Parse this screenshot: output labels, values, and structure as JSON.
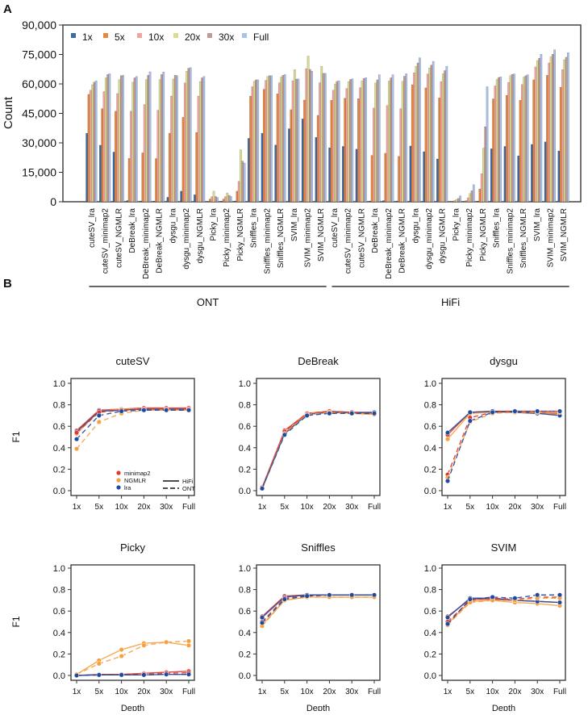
{
  "panel_labels": [
    "A",
    "B"
  ],
  "colors": {
    "depth": {
      "1x": "#3b6aa8",
      "5x": "#e9873b",
      "10x": "#f5a3a0",
      "20x": "#dadc8e",
      "30x": "#c49a93",
      "Full": "#a9c2ea"
    },
    "aligner": {
      "minimap2": "#e2372d",
      "NGMLR": "#f6a040",
      "lra": "#1f4a9c"
    }
  },
  "chart_data": [
    {
      "type": "bar",
      "panel": "A",
      "ylabel": "Count",
      "ylim": [
        0,
        90000
      ],
      "yticks": [
        "0",
        "15,000",
        "30,000",
        "45,000",
        "60,000",
        "75,000",
        "90,000"
      ],
      "legend": [
        "1x",
        "5x",
        "10x",
        "20x",
        "30x",
        "Full"
      ],
      "legend_position": "top-left",
      "groups": [
        {
          "name": "ONT",
          "from": 0,
          "to": 17
        },
        {
          "name": "HiFi",
          "from": 18,
          "to": 35
        }
      ],
      "categories": [
        "cuteSV_lra",
        "cuteSV_minimap2",
        "cuteSV_NGMLR",
        "DeBreak_lra",
        "DeBreak_minimap2",
        "DeBreak_NGMLR",
        "dysgu_lra",
        "dysgu_minimap2",
        "dysgu_NGMLR",
        "Picky_lra",
        "Picky_minimap2",
        "Picky_NGMLR",
        "Sniffles_lra",
        "Sniffles_minimap2",
        "Sniffles_NGMLR",
        "SVIM_lra",
        "SVIM_minimap2",
        "SVIM_NGMLR",
        "cuteSV_lra",
        "cuteSV_minimap2",
        "cuteSV_NGMLR",
        "DeBreak_lra",
        "DeBreak_minimap2",
        "DeBreak_NGMLR",
        "dysgu_lra",
        "dysgu_minimap2",
        "dysgu_NGMLR",
        "Picky_lra",
        "Picky_minimap2",
        "Picky_NGMLR",
        "Sniffles_lra",
        "Sniffles_minimap2",
        "Sniffles_NGMLR",
        "SVIM_lra",
        "SVIM_minimap2",
        "SVIM_NGMLR"
      ],
      "series": [
        {
          "name": "1x",
          "values": [
            34900,
            28800,
            25300,
            600,
            400,
            300,
            2300,
            5400,
            3600,
            150,
            300,
            400,
            32300,
            34900,
            28900,
            37200,
            42200,
            32800,
            27500,
            28200,
            26800,
            400,
            600,
            400,
            28400,
            25500,
            21800,
            0,
            150,
            300,
            27000,
            28200,
            23400,
            29200,
            30500,
            25900
          ]
        },
        {
          "name": "5x",
          "values": [
            54700,
            47400,
            46100,
            22100,
            24900,
            22000,
            34900,
            43000,
            35300,
            1400,
            1400,
            5400,
            53800,
            57300,
            55000,
            46900,
            51800,
            44000,
            51700,
            52700,
            52500,
            23600,
            24700,
            23100,
            59600,
            58000,
            52900,
            300,
            600,
            6500,
            52400,
            54200,
            51700,
            62100,
            64400,
            58300
          ]
        },
        {
          "name": "10x",
          "values": [
            56800,
            56100,
            55100,
            46100,
            49500,
            46600,
            53800,
            60500,
            53800,
            2600,
            2600,
            10400,
            58600,
            61800,
            60600,
            61600,
            67800,
            60600,
            56800,
            57700,
            58100,
            47700,
            49000,
            47400,
            65700,
            65100,
            61200,
            600,
            2000,
            14300,
            59000,
            60800,
            59700,
            68700,
            70700,
            67300
          ]
        },
        {
          "name": "20x",
          "values": [
            59600,
            63100,
            62200,
            60900,
            62200,
            62200,
            62500,
            66500,
            61200,
            5400,
            4500,
            26500,
            61300,
            63800,
            63500,
            67300,
            74200,
            69000,
            60000,
            61200,
            61600,
            60500,
            61500,
            61300,
            69000,
            68100,
            65200,
            1200,
            4200,
            27300,
            62300,
            64200,
            63500,
            71900,
            73800,
            72300
          ]
        },
        {
          "name": "30x",
          "values": [
            60900,
            64800,
            64200,
            63100,
            64400,
            64800,
            64400,
            68000,
            63100,
            2700,
            3300,
            20700,
            62100,
            64200,
            64400,
            62500,
            67400,
            65400,
            61300,
            62300,
            62800,
            62100,
            63100,
            63900,
            70700,
            69600,
            66800,
            1700,
            5600,
            38200,
            63300,
            64900,
            64200,
            73100,
            75100,
            73600
          ]
        },
        {
          "name": "Full",
          "values": [
            61600,
            65200,
            64400,
            63800,
            66200,
            66100,
            64200,
            68300,
            63800,
            2200,
            2700,
            19700,
            62100,
            64200,
            64800,
            62500,
            66500,
            65400,
            61600,
            62600,
            63200,
            64700,
            64700,
            65200,
            73300,
            71500,
            69000,
            3000,
            8700,
            58600,
            63600,
            65100,
            64700,
            75100,
            77400,
            75900
          ]
        }
      ]
    },
    {
      "type": "line",
      "panel": "B",
      "title": "cuteSV",
      "ylabel": "F1",
      "xlabel": "",
      "ylim": [
        0,
        1
      ],
      "categories": [
        "1x",
        "5x",
        "10x",
        "20x",
        "30x",
        "Full"
      ],
      "series": [
        {
          "aligner": "minimap2",
          "platform": "HiFi",
          "values": [
            0.56,
            0.75,
            0.76,
            0.77,
            0.77,
            0.77
          ]
        },
        {
          "aligner": "NGMLR",
          "platform": "HiFi",
          "values": [
            0.53,
            0.74,
            0.76,
            0.76,
            0.76,
            0.76
          ]
        },
        {
          "aligner": "lra",
          "platform": "HiFi",
          "values": [
            0.55,
            0.74,
            0.75,
            0.76,
            0.76,
            0.76
          ]
        },
        {
          "aligner": "minimap2",
          "platform": "ONT",
          "values": [
            0.54,
            0.73,
            0.75,
            0.76,
            0.76,
            0.76
          ]
        },
        {
          "aligner": "NGMLR",
          "platform": "ONT",
          "values": [
            0.39,
            0.64,
            0.72,
            0.75,
            0.75,
            0.75
          ]
        },
        {
          "aligner": "lra",
          "platform": "ONT",
          "values": [
            0.48,
            0.7,
            0.74,
            0.75,
            0.75,
            0.75
          ]
        }
      ]
    },
    {
      "type": "line",
      "panel": "B",
      "title": "DeBreak",
      "ylabel": "",
      "xlabel": "",
      "ylim": [
        0,
        1
      ],
      "categories": [
        "1x",
        "5x",
        "10x",
        "20x",
        "30x",
        "Full"
      ],
      "series": [
        {
          "aligner": "minimap2",
          "platform": "HiFi",
          "values": [
            0.03,
            0.56,
            0.72,
            0.74,
            0.73,
            0.72
          ]
        },
        {
          "aligner": "NGMLR",
          "platform": "HiFi",
          "values": [
            0.02,
            0.54,
            0.72,
            0.73,
            0.72,
            0.71
          ]
        },
        {
          "aligner": "lra",
          "platform": "HiFi",
          "values": [
            0.02,
            0.53,
            0.71,
            0.73,
            0.73,
            0.73
          ]
        },
        {
          "aligner": "minimap2",
          "platform": "ONT",
          "values": [
            0.03,
            0.55,
            0.72,
            0.74,
            0.73,
            0.72
          ]
        },
        {
          "aligner": "NGMLR",
          "platform": "ONT",
          "values": [
            0.02,
            0.53,
            0.71,
            0.73,
            0.72,
            0.71
          ]
        },
        {
          "aligner": "lra",
          "platform": "ONT",
          "values": [
            0.02,
            0.52,
            0.7,
            0.72,
            0.72,
            0.72
          ]
        }
      ]
    },
    {
      "type": "line",
      "panel": "B",
      "title": "dysgu",
      "ylabel": "",
      "xlabel": "",
      "ylim": [
        0,
        1
      ],
      "categories": [
        "1x",
        "5x",
        "10x",
        "20x",
        "30x",
        "Full"
      ],
      "series": [
        {
          "aligner": "minimap2",
          "platform": "HiFi",
          "values": [
            0.52,
            0.73,
            0.74,
            0.74,
            0.73,
            0.72
          ]
        },
        {
          "aligner": "NGMLR",
          "platform": "HiFi",
          "values": [
            0.48,
            0.72,
            0.73,
            0.73,
            0.72,
            0.71
          ]
        },
        {
          "aligner": "lra",
          "platform": "HiFi",
          "values": [
            0.54,
            0.73,
            0.74,
            0.73,
            0.72,
            0.7
          ]
        },
        {
          "aligner": "minimap2",
          "platform": "ONT",
          "values": [
            0.15,
            0.68,
            0.73,
            0.74,
            0.74,
            0.74
          ]
        },
        {
          "aligner": "NGMLR",
          "platform": "ONT",
          "values": [
            0.12,
            0.64,
            0.72,
            0.73,
            0.73,
            0.73
          ]
        },
        {
          "aligner": "lra",
          "platform": "ONT",
          "values": [
            0.09,
            0.65,
            0.73,
            0.74,
            0.74,
            0.74
          ]
        }
      ]
    },
    {
      "type": "line",
      "panel": "B",
      "title": "Picky",
      "ylabel": "F1",
      "xlabel": "Depth",
      "ylim": [
        0,
        1
      ],
      "categories": [
        "1x",
        "5x",
        "10x",
        "20x",
        "30x",
        "Full"
      ],
      "series": [
        {
          "aligner": "minimap2",
          "platform": "HiFi",
          "values": [
            0.0,
            0.01,
            0.01,
            0.02,
            0.03,
            0.04
          ]
        },
        {
          "aligner": "NGMLR",
          "platform": "HiFi",
          "values": [
            0.01,
            0.14,
            0.24,
            0.3,
            0.31,
            0.28
          ]
        },
        {
          "aligner": "lra",
          "platform": "HiFi",
          "values": [
            0.0,
            0.005,
            0.005,
            0.005,
            0.01,
            0.01
          ]
        },
        {
          "aligner": "minimap2",
          "platform": "ONT",
          "values": [
            0.0,
            0.005,
            0.01,
            0.015,
            0.02,
            0.025
          ]
        },
        {
          "aligner": "NGMLR",
          "platform": "ONT",
          "values": [
            0.01,
            0.11,
            0.18,
            0.28,
            0.31,
            0.32
          ]
        },
        {
          "aligner": "lra",
          "platform": "ONT",
          "values": [
            0.0,
            0.005,
            0.005,
            0.005,
            0.01,
            0.01
          ]
        }
      ]
    },
    {
      "type": "line",
      "panel": "B",
      "title": "Sniffles",
      "ylabel": "",
      "xlabel": "Depth",
      "ylim": [
        0,
        1
      ],
      "categories": [
        "1x",
        "5x",
        "10x",
        "20x",
        "30x",
        "Full"
      ],
      "series": [
        {
          "aligner": "minimap2",
          "platform": "HiFi",
          "values": [
            0.55,
            0.74,
            0.75,
            0.75,
            0.75,
            0.75
          ]
        },
        {
          "aligner": "NGMLR",
          "platform": "HiFi",
          "values": [
            0.47,
            0.7,
            0.73,
            0.73,
            0.73,
            0.73
          ]
        },
        {
          "aligner": "lra",
          "platform": "HiFi",
          "values": [
            0.54,
            0.73,
            0.75,
            0.75,
            0.75,
            0.75
          ]
        },
        {
          "aligner": "minimap2",
          "platform": "ONT",
          "values": [
            0.5,
            0.72,
            0.74,
            0.75,
            0.75,
            0.75
          ]
        },
        {
          "aligner": "NGMLR",
          "platform": "ONT",
          "values": [
            0.46,
            0.7,
            0.73,
            0.73,
            0.73,
            0.73
          ]
        },
        {
          "aligner": "lra",
          "platform": "ONT",
          "values": [
            0.49,
            0.71,
            0.74,
            0.75,
            0.75,
            0.75
          ]
        }
      ]
    },
    {
      "type": "line",
      "panel": "B",
      "title": "SVIM",
      "ylabel": "",
      "xlabel": "Depth",
      "ylim": [
        0,
        1
      ],
      "categories": [
        "1x",
        "5x",
        "10x",
        "20x",
        "30x",
        "Full"
      ],
      "series": [
        {
          "aligner": "minimap2",
          "platform": "HiFi",
          "values": [
            0.55,
            0.71,
            0.71,
            0.7,
            0.69,
            0.68
          ]
        },
        {
          "aligner": "NGMLR",
          "platform": "HiFi",
          "values": [
            0.48,
            0.69,
            0.7,
            0.68,
            0.67,
            0.65
          ]
        },
        {
          "aligner": "lra",
          "platform": "HiFi",
          "values": [
            0.54,
            0.72,
            0.72,
            0.7,
            0.69,
            0.68
          ]
        },
        {
          "aligner": "minimap2",
          "platform": "ONT",
          "values": [
            0.5,
            0.7,
            0.72,
            0.71,
            0.73,
            0.73
          ]
        },
        {
          "aligner": "NGMLR",
          "platform": "ONT",
          "values": [
            0.47,
            0.68,
            0.7,
            0.7,
            0.72,
            0.72
          ]
        },
        {
          "aligner": "lra",
          "platform": "ONT",
          "values": [
            0.48,
            0.71,
            0.73,
            0.72,
            0.75,
            0.75
          ]
        }
      ]
    }
  ],
  "line_legend": {
    "aligners": [
      "minimap2",
      "NGMLR",
      "lra"
    ],
    "platforms": [
      {
        "label": "HiFi",
        "style": "solid"
      },
      {
        "label": "ONT",
        "style": "dashed"
      }
    ]
  },
  "yticks_f1": [
    "0.0",
    "0.2",
    "0.4",
    "0.6",
    "0.8",
    "1.0"
  ]
}
